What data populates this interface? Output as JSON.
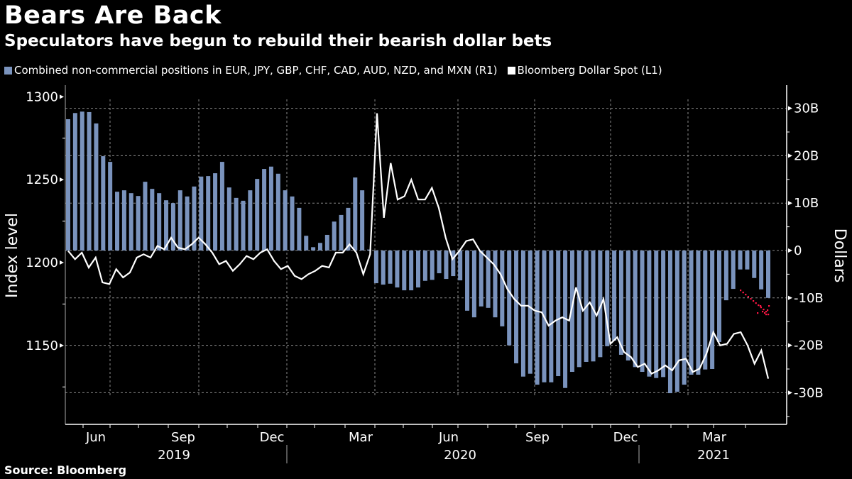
{
  "header": {
    "title": "Bears Are Back",
    "subtitle": "Speculators have begun to rebuild their bearish dollar bets"
  },
  "legend": {
    "items": [
      {
        "label": "Combined non-commercial positions in EUR, JPY, GBP, CHF, CAD, AUD, NZD, and MXN (R1)",
        "color": "#7a93bd"
      },
      {
        "label": "Bloomberg Dollar Spot (L1)",
        "color": "#ffffff"
      }
    ]
  },
  "source": "Source: Bloomberg",
  "colors": {
    "background": "#000000",
    "bars": "#7a93bd",
    "line": "#ffffff",
    "grid": "#8a8a8a",
    "arrow": "#ff1744"
  },
  "chart_data": {
    "type": "bar+line",
    "title": "Bears Are Back",
    "subtitle": "Speculators have begun to rebuild their bearish dollar bets",
    "left_axis": {
      "label": "Index level",
      "ticks": [
        1150,
        1200,
        1250,
        1300
      ],
      "tick_labels": [
        "1150",
        "1200",
        "1250",
        "1300"
      ],
      "range": [
        1113,
        1306
      ]
    },
    "right_axis": {
      "label": "Dollars",
      "ticks": [
        -30,
        -20,
        -10,
        0,
        10,
        20,
        30
      ],
      "tick_labels": [
        "-30B",
        "-20B",
        "-10B",
        "0",
        "10B",
        "20B",
        "30B"
      ],
      "range": [
        -36,
        36
      ]
    },
    "x_axis": {
      "month_labels": [
        "Jun",
        "Sep",
        "Dec",
        "Mar",
        "Jun",
        "Sep",
        "Dec",
        "Mar"
      ],
      "year_labels": [
        "2019",
        "2020",
        "2021"
      ]
    },
    "grid": true,
    "legend_position": "top-left",
    "series": [
      {
        "name": "Combined non-commercial positions in EUR, JPY, GBP, CHF, CAD, AUD, NZD, and MXN (R1)",
        "type": "bar",
        "axis": "right",
        "unit": "billion USD",
        "values": [
          27.7,
          29.0,
          29.3,
          29.2,
          26.8,
          19.9,
          18.7,
          12.4,
          12.7,
          12.1,
          11.5,
          14.5,
          13.0,
          12.1,
          10.6,
          10.0,
          12.7,
          11.4,
          13.5,
          15.6,
          15.7,
          16.3,
          18.7,
          13.3,
          11.1,
          10.5,
          12.7,
          15.1,
          17.2,
          17.7,
          16.2,
          12.7,
          11.4,
          9.0,
          3.1,
          0.7,
          1.6,
          3.3,
          6.1,
          7.5,
          9.0,
          15.4,
          12.7,
          0.2,
          -6.9,
          -7.2,
          -7.0,
          -7.8,
          -8.4,
          -8.4,
          -7.8,
          -6.4,
          -6.2,
          -4.8,
          -6.0,
          -5.4,
          -6.3,
          -12.7,
          -14.1,
          -11.8,
          -12.1,
          -14.1,
          -16.0,
          -20.0,
          -23.8,
          -26.6,
          -26.0,
          -28.3,
          -27.8,
          -27.8,
          -26.5,
          -29.0,
          -25.6,
          -24.6,
          -23.5,
          -23.4,
          -22.5,
          -20.2,
          -19.0,
          -22.0,
          -23.2,
          -24.6,
          -25.6,
          -26.6,
          -26.9,
          -26.7,
          -30.1,
          -29.8,
          -28.3,
          -26.2,
          -26.2,
          -25.1,
          -25.0,
          -19.3,
          -10.5,
          -8.1,
          -4.0,
          -4.0,
          -5.8,
          -8.2,
          -10.0
        ]
      },
      {
        "name": "Bloomberg Dollar Spot (L1)",
        "type": "line",
        "axis": "left",
        "unit": "index",
        "values": [
          1207,
          1202,
          1206,
          1197,
          1203,
          1188,
          1187,
          1196,
          1191,
          1194,
          1203,
          1205,
          1203,
          1210,
          1208,
          1215,
          1209,
          1208,
          1211,
          1215,
          1211,
          1206,
          1199,
          1201,
          1195,
          1199,
          1204,
          1202,
          1206,
          1208,
          1201,
          1196,
          1198,
          1192,
          1190,
          1193,
          1195,
          1198,
          1197,
          1206,
          1206,
          1211,
          1206,
          1193,
          1205,
          1290,
          1227,
          1260,
          1238,
          1240,
          1250,
          1238,
          1238,
          1245,
          1233,
          1215,
          1202,
          1207,
          1213,
          1214,
          1207,
          1203,
          1199,
          1193,
          1184,
          1178,
          1174,
          1174,
          1171,
          1170,
          1162,
          1165,
          1167,
          1165,
          1185,
          1171,
          1176,
          1168,
          1178,
          1151,
          1155,
          1146,
          1143,
          1137,
          1139,
          1133,
          1135,
          1138,
          1135,
          1141,
          1142,
          1134,
          1136,
          1145,
          1158,
          1150,
          1151,
          1157,
          1158,
          1150,
          1139,
          1147,
          1130
        ]
      }
    ],
    "annotations": [
      {
        "type": "dotted-arrow",
        "color": "#ff1744",
        "direction": "down-right",
        "description": "red dotted arrow pointing at recent bearish bet increase"
      }
    ]
  }
}
